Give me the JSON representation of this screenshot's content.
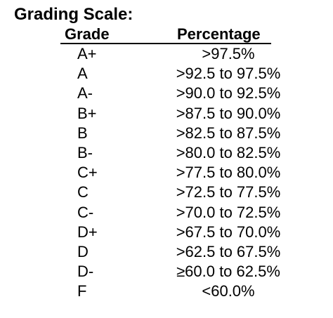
{
  "document": {
    "title": "Grading Scale:",
    "columns": {
      "grade": "Grade",
      "percentage": "Percentage"
    },
    "rows": [
      {
        "grade": "A+",
        "percentage": ">97.5%"
      },
      {
        "grade": "A",
        "percentage": ">92.5 to 97.5%"
      },
      {
        "grade": "A-",
        "percentage": ">90.0 to 92.5%"
      },
      {
        "grade": "B+",
        "percentage": ">87.5 to 90.0%"
      },
      {
        "grade": "B",
        "percentage": ">82.5 to 87.5%"
      },
      {
        "grade": "B-",
        "percentage": ">80.0 to 82.5%"
      },
      {
        "grade": "C+",
        "percentage": ">77.5 to 80.0%"
      },
      {
        "grade": "C",
        "percentage": ">72.5 to 77.5%"
      },
      {
        "grade": "C-",
        "percentage": ">70.0 to 72.5%"
      },
      {
        "grade": "D+",
        "percentage": ">67.5 to 70.0%"
      },
      {
        "grade": "D",
        "percentage": ">62.5 to 67.5%"
      },
      {
        "grade": "D-",
        "percentage": "≥60.0 to 62.5%"
      },
      {
        "grade": "F",
        "percentage": "<60.0%"
      }
    ]
  }
}
